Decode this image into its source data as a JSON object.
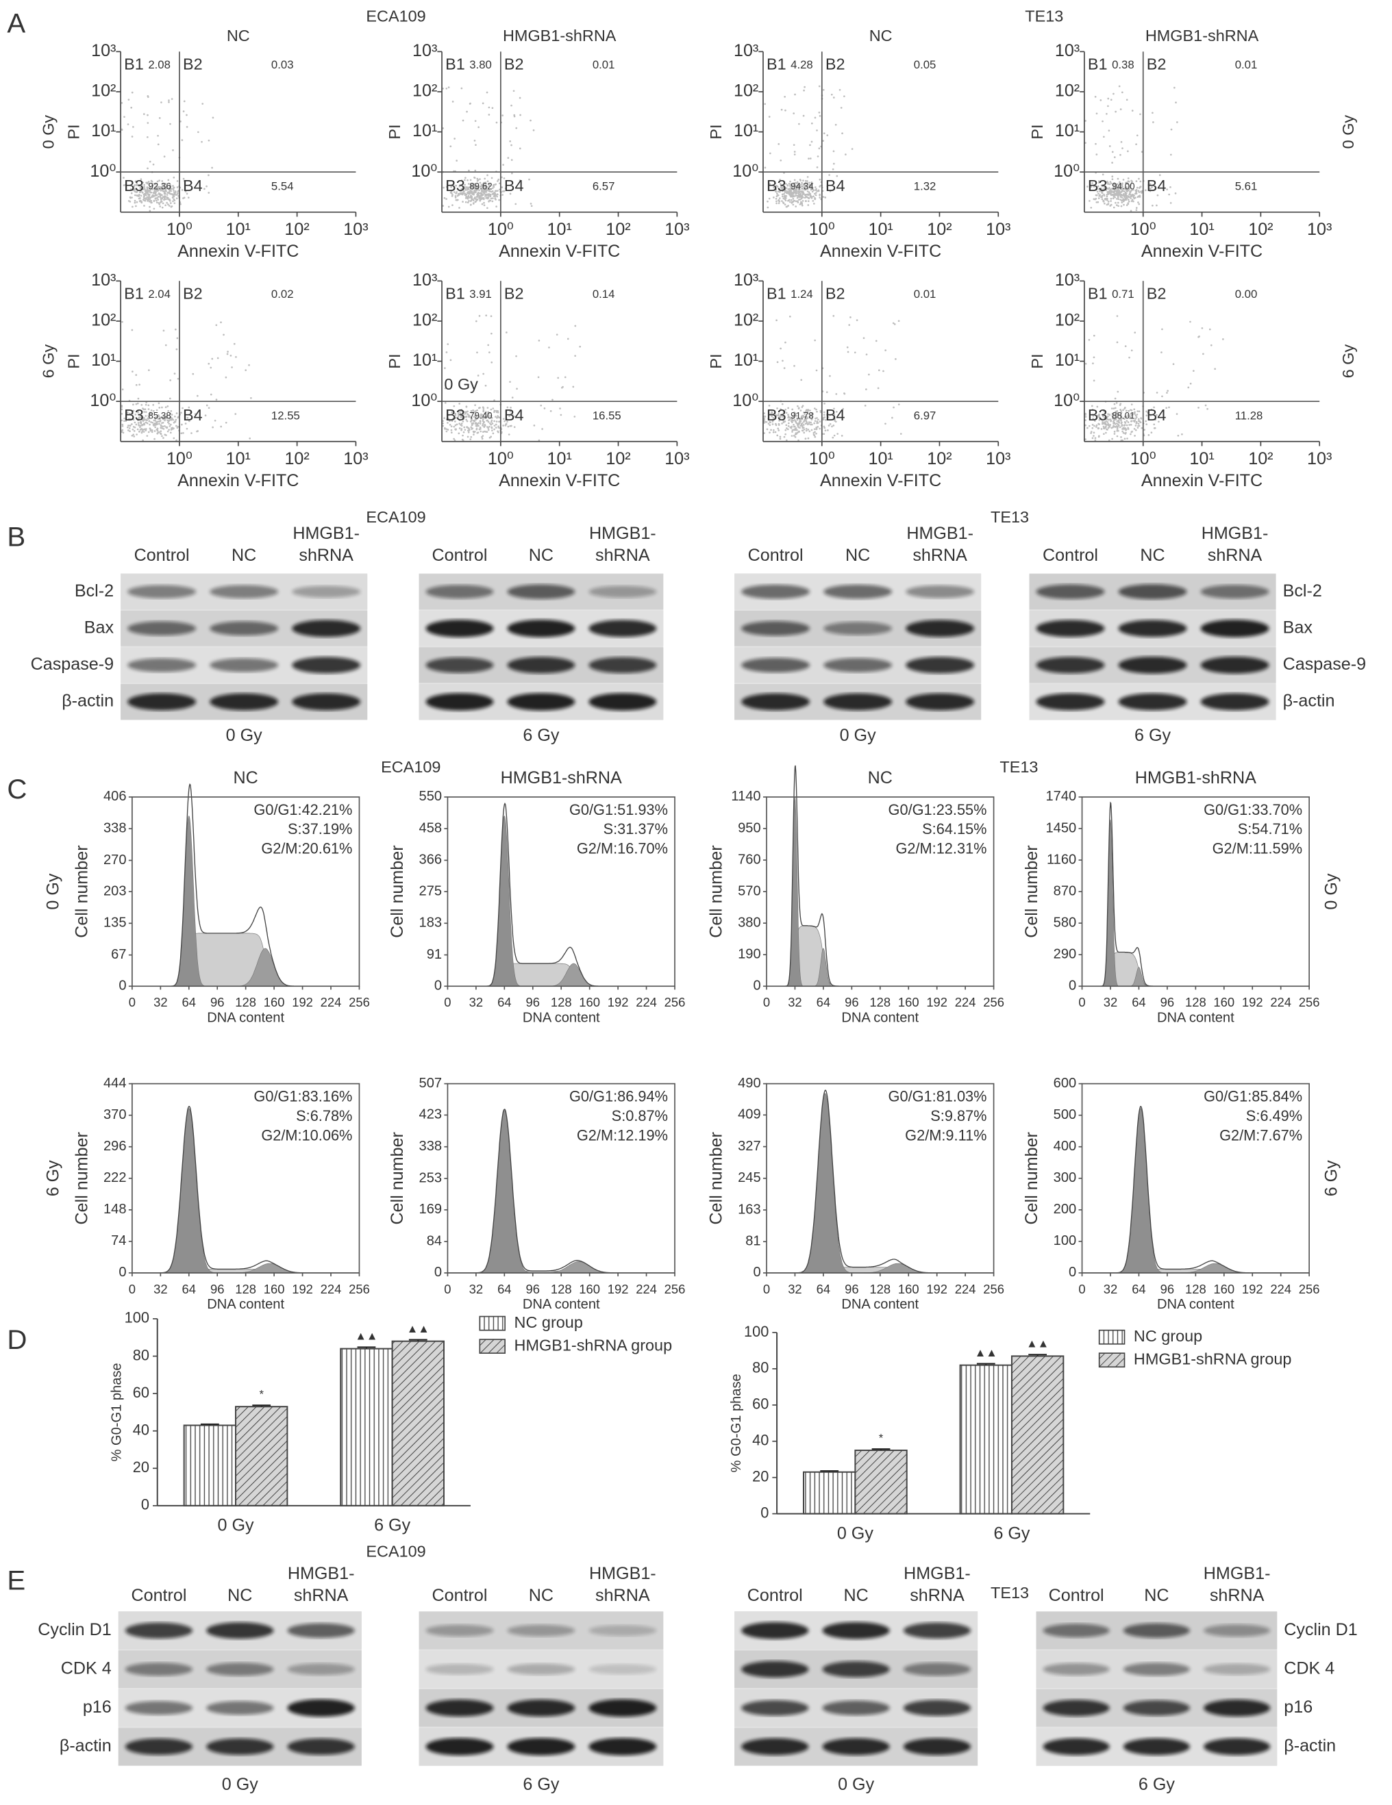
{
  "figure": {
    "panel_A": {
      "label": "A",
      "groups": [
        "ECA109",
        "TE13"
      ],
      "columns": [
        "NC",
        "HMGB1-shRNA",
        "NC",
        "HMGB1-shRNA"
      ],
      "rows": [
        "0 Gy",
        "6 Gy"
      ],
      "xlabel": "Annexin V-FITC",
      "ylabel": "PI",
      "log": true,
      "xlim": [
        0.1,
        1000
      ],
      "ylim": [
        0.1,
        1000
      ],
      "xticks": [
        {
          "value": 1,
          "label": "10⁰"
        },
        {
          "value": 10,
          "label": "10¹"
        },
        {
          "value": 100,
          "label": "10²"
        },
        {
          "value": 1000,
          "label": "10³"
        }
      ],
      "yticks": [
        {
          "value": 1,
          "label": "10⁰"
        },
        {
          "value": 10,
          "label": "10¹"
        },
        {
          "value": 100,
          "label": "10²"
        },
        {
          "value": 1000,
          "label": "10³"
        }
      ],
      "gate": [
        1,
        1
      ],
      "quadrant_names": [
        "B1",
        "B2",
        "B3",
        "B4"
      ],
      "plots": [
        {
          "values": [
            "2.08",
            "0.03",
            "92.36",
            "5.54"
          ]
        },
        {
          "values": [
            "3.80",
            "0.01",
            "89.62",
            "6.57"
          ]
        },
        {
          "values": [
            "4.28",
            "0.05",
            "94.34",
            "1.32"
          ]
        },
        {
          "values": [
            "0.38",
            "0.01",
            "94.00",
            "5.61"
          ]
        },
        {
          "values": [
            "2.04",
            "0.02",
            "85.38",
            "12.55"
          ]
        },
        {
          "values": [
            "3.91",
            "0.14",
            "79.40",
            "16.55"
          ],
          "note": "0 Gy"
        },
        {
          "values": [
            "1.24",
            "0.01",
            "91.78",
            "6.97"
          ]
        },
        {
          "values": [
            "0.71",
            "0.00",
            "88.01",
            "11.28"
          ]
        }
      ]
    },
    "panel_B": {
      "label": "B",
      "groups": [
        "ECA109",
        "TE13"
      ],
      "lanes": [
        "Control",
        "NC",
        [
          "HMGB1-",
          "shRNA"
        ]
      ],
      "proteins": [
        "Bcl-2",
        "Bax",
        "Caspase-9",
        "β-actin"
      ],
      "doses": [
        "0 Gy",
        "6 Gy",
        "0 Gy",
        "6 Gy"
      ]
    },
    "panel_C": {
      "label": "C",
      "groups": [
        "ECA109",
        "TE13"
      ],
      "columns": [
        "NC",
        "HMGB1-shRNA",
        "NC",
        "HMGB1-shRNA"
      ],
      "rows": [
        "0 Gy",
        "6 Gy"
      ],
      "xlabel": "DNA content",
      "ylabel": "Cell number",
      "xlim": [
        0,
        256
      ],
      "xticks": [
        0,
        32,
        64,
        96,
        128,
        160,
        192,
        224,
        256
      ],
      "plots": [
        {
          "ylim": [
            0,
            406
          ],
          "yticks": [
            0,
            67,
            135,
            203,
            270,
            338,
            406
          ],
          "annotation": [
            "G0/G1:42.21%",
            "S:37.19%",
            "G2/M:20.61%"
          ]
        },
        {
          "ylim": [
            0,
            550
          ],
          "yticks": [
            0,
            91,
            183,
            275,
            366,
            458,
            550
          ],
          "annotation": [
            "G0/G1:51.93%",
            "S:31.37%",
            "G2/M:16.70%"
          ]
        },
        {
          "ylim": [
            0,
            1140
          ],
          "yticks": [
            0,
            190,
            380,
            570,
            760,
            950,
            1140
          ],
          "annotation": [
            "G0/G1:23.55%",
            "S:64.15%",
            "G2/M:12.31%"
          ]
        },
        {
          "ylim": [
            0,
            1740
          ],
          "yticks": [
            0,
            290,
            580,
            870,
            1160,
            1450,
            1740
          ],
          "annotation": [
            "G0/G1:33.70%",
            "S:54.71%",
            "G2/M:11.59%"
          ]
        },
        {
          "ylim": [
            0,
            444
          ],
          "yticks": [
            0,
            74,
            148,
            222,
            296,
            370,
            444
          ],
          "annotation": [
            "G0/G1:83.16%",
            "S:6.78%",
            "G2/M:10.06%"
          ]
        },
        {
          "ylim": [
            0,
            507
          ],
          "yticks": [
            0,
            84,
            169,
            253,
            338,
            423,
            507
          ],
          "annotation": [
            "G0/G1:86.94%",
            "S:0.87%",
            "G2/M:12.19%"
          ]
        },
        {
          "ylim": [
            0,
            490
          ],
          "yticks": [
            0,
            81,
            163,
            245,
            327,
            409,
            490
          ],
          "annotation": [
            "G0/G1:81.03%",
            "S:9.87%",
            "G2/M:9.11%"
          ]
        },
        {
          "ylim": [
            0,
            600
          ],
          "yticks": [
            0,
            100,
            200,
            300,
            400,
            500,
            600
          ],
          "annotation": [
            "G0/G1:85.84%",
            "S:6.49%",
            "G2/M:7.67%"
          ]
        }
      ]
    },
    "panel_D": {
      "label": "D"
    },
    "panel_E": {
      "label": "E",
      "groups": [
        "ECA109",
        "TE13"
      ],
      "lanes": [
        "Control",
        "NC",
        [
          "HMGB1-",
          "shRNA"
        ]
      ],
      "proteins": [
        "Cyclin D1",
        "CDK 4",
        "p16",
        "β-actin"
      ],
      "doses": [
        "0 Gy",
        "6 Gy",
        "0 Gy",
        "6 Gy"
      ]
    }
  },
  "chart_data": [
    {
      "type": "bar",
      "ylabel": "% G0-G1 phase",
      "categories": [
        "0 Gy",
        "6 Gy"
      ],
      "color": "#444444",
      "legend": "top-right",
      "ylim": [
        0,
        100
      ],
      "yticks": [
        0,
        20,
        40,
        60,
        80,
        100
      ],
      "series": [
        {
          "name": "NC group",
          "pattern": "vertical",
          "values": [
            43,
            84
          ],
          "errors": [
            0.6,
            0.8
          ],
          "marks": [
            null,
            "▲▲"
          ]
        },
        {
          "name": "HMGB1-shRNA group",
          "pattern": "diagonal",
          "values": [
            53,
            88
          ],
          "errors": [
            0.7,
            0.8
          ],
          "marks": [
            "*",
            "▲▲"
          ]
        }
      ]
    },
    {
      "type": "bar",
      "ylabel": "% G0-G1 phase",
      "categories": [
        "0 Gy",
        "6 Gy"
      ],
      "color": "#444444",
      "legend": "top-right",
      "ylim": [
        0,
        100
      ],
      "yticks": [
        0,
        20,
        40,
        60,
        80,
        100
      ],
      "series": [
        {
          "name": "NC group",
          "pattern": "vertical",
          "values": [
            23,
            82
          ],
          "errors": [
            0.6,
            0.8
          ],
          "marks": [
            null,
            "▲▲"
          ]
        },
        {
          "name": "HMGB1-shRNA group",
          "pattern": "diagonal",
          "values": [
            35,
            87
          ],
          "errors": [
            0.7,
            0.8
          ],
          "marks": [
            "*",
            "▲▲"
          ]
        }
      ]
    }
  ]
}
